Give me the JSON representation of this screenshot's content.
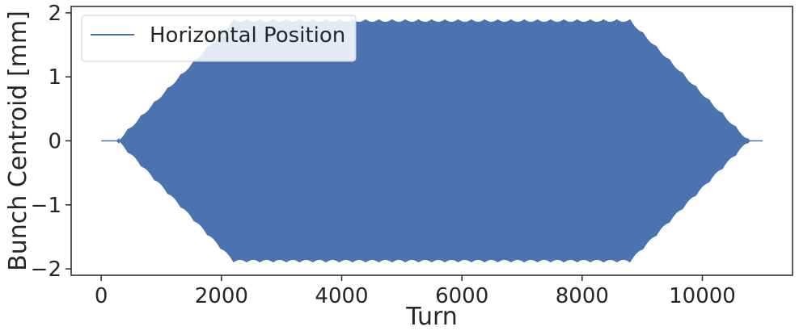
{
  "chart_data": {
    "type": "line",
    "title": "",
    "xlabel": "Turn",
    "ylabel": "Bunch Centroid [mm]",
    "xlim": [
      -500,
      11500
    ],
    "ylim": [
      -2.1,
      2.1
    ],
    "xticks": [
      0,
      2000,
      4000,
      6000,
      8000,
      10000
    ],
    "xtick_labels": [
      "0",
      "2000",
      "4000",
      "6000",
      "8000",
      "10000"
    ],
    "yticks": [
      -2,
      -1,
      0,
      1,
      2
    ],
    "ytick_labels": [
      "−2",
      "−1",
      "0",
      "1",
      "2"
    ],
    "grid": false,
    "legend": {
      "position": "top-left",
      "entries": [
        "Horizontal Position"
      ]
    },
    "series": [
      {
        "name": "Horizontal Position",
        "color": "#4c72b0",
        "description_of_shape": "fast oscillation with envelope",
        "envelope": {
          "x": [
            0,
            250,
            2200,
            8800,
            10800,
            11000
          ],
          "y": [
            0,
            0,
            1.9,
            1.9,
            0,
            0
          ]
        },
        "oscillation_period_turns": 4
      }
    ]
  }
}
